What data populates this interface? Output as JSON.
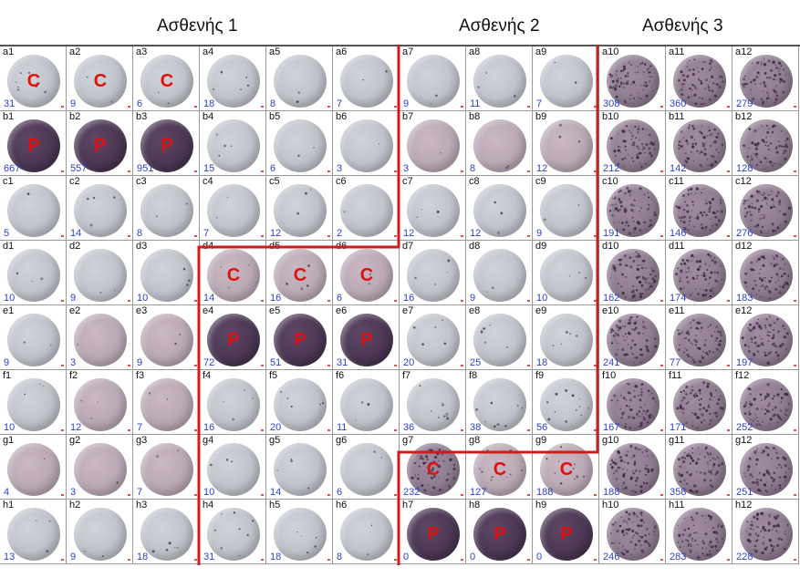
{
  "headers": [
    "Ασθενής 1",
    "Ασθενής 2",
    "Ασθενής 3"
  ],
  "rows": [
    "a",
    "b",
    "c",
    "d",
    "e",
    "f",
    "g",
    "h"
  ],
  "wells": [
    [
      [
        "a1",
        "31",
        "light",
        "C"
      ],
      [
        "a2",
        "9",
        "light",
        "C"
      ],
      [
        "a3",
        "6",
        "light",
        "C"
      ],
      [
        "a4",
        "18",
        "light",
        ""
      ],
      [
        "a5",
        "8",
        "light",
        ""
      ],
      [
        "a6",
        "7",
        "light",
        ""
      ],
      [
        "a7",
        "9",
        "light",
        ""
      ],
      [
        "a8",
        "11",
        "light",
        ""
      ],
      [
        "a9",
        "7",
        "light",
        ""
      ],
      [
        "a10",
        "308",
        "speck",
        ""
      ],
      [
        "a11",
        "360",
        "speck",
        ""
      ],
      [
        "a12",
        "279",
        "speck",
        ""
      ]
    ],
    [
      [
        "b1",
        "667",
        "dark",
        "P"
      ],
      [
        "b2",
        "557",
        "dark",
        "P"
      ],
      [
        "b3",
        "951",
        "dark",
        "P"
      ],
      [
        "b4",
        "15",
        "light",
        ""
      ],
      [
        "b5",
        "6",
        "light",
        ""
      ],
      [
        "b6",
        "3",
        "light",
        ""
      ],
      [
        "b7",
        "3",
        "pink",
        ""
      ],
      [
        "b8",
        "8",
        "pink",
        ""
      ],
      [
        "b9",
        "12",
        "pink",
        ""
      ],
      [
        "b10",
        "212",
        "speck",
        ""
      ],
      [
        "b11",
        "142",
        "speck",
        ""
      ],
      [
        "b12",
        "128",
        "speck",
        ""
      ]
    ],
    [
      [
        "c1",
        "5",
        "light",
        ""
      ],
      [
        "c2",
        "14",
        "light",
        ""
      ],
      [
        "c3",
        "8",
        "light",
        ""
      ],
      [
        "c4",
        "7",
        "light",
        ""
      ],
      [
        "c5",
        "12",
        "light",
        ""
      ],
      [
        "c6",
        "2",
        "light",
        ""
      ],
      [
        "c7",
        "12",
        "light",
        ""
      ],
      [
        "c8",
        "12",
        "light",
        ""
      ],
      [
        "c9",
        "9",
        "light",
        ""
      ],
      [
        "c10",
        "191",
        "speck",
        ""
      ],
      [
        "c11",
        "146",
        "speck",
        ""
      ],
      [
        "c12",
        "276",
        "speck",
        ""
      ]
    ],
    [
      [
        "d1",
        "10",
        "light",
        ""
      ],
      [
        "d2",
        "9",
        "light",
        ""
      ],
      [
        "d3",
        "10",
        "light",
        ""
      ],
      [
        "d4",
        "14",
        "pink",
        "C"
      ],
      [
        "d5",
        "16",
        "pink",
        "C"
      ],
      [
        "d6",
        "6",
        "pink",
        "C"
      ],
      [
        "d7",
        "16",
        "light",
        ""
      ],
      [
        "d8",
        "9",
        "light",
        ""
      ],
      [
        "d9",
        "10",
        "light",
        ""
      ],
      [
        "d10",
        "162",
        "speck",
        ""
      ],
      [
        "d11",
        "174",
        "speck",
        ""
      ],
      [
        "d12",
        "183",
        "speck",
        ""
      ]
    ],
    [
      [
        "e1",
        "9",
        "light",
        ""
      ],
      [
        "e2",
        "3",
        "pink",
        ""
      ],
      [
        "e3",
        "9",
        "pink",
        ""
      ],
      [
        "e4",
        "72",
        "dark",
        "P"
      ],
      [
        "e5",
        "51",
        "dark",
        "P"
      ],
      [
        "e6",
        "31",
        "dark",
        "P"
      ],
      [
        "e7",
        "20",
        "light",
        ""
      ],
      [
        "e8",
        "25",
        "light",
        ""
      ],
      [
        "e9",
        "18",
        "light",
        ""
      ],
      [
        "e10",
        "241",
        "speck",
        ""
      ],
      [
        "e11",
        "77",
        "speck",
        ""
      ],
      [
        "e12",
        "197",
        "speck",
        ""
      ]
    ],
    [
      [
        "f1",
        "10",
        "light",
        ""
      ],
      [
        "f2",
        "12",
        "pink",
        ""
      ],
      [
        "f3",
        "7",
        "pink",
        ""
      ],
      [
        "f4",
        "16",
        "light",
        ""
      ],
      [
        "f5",
        "20",
        "light",
        ""
      ],
      [
        "f6",
        "11",
        "light",
        ""
      ],
      [
        "f7",
        "36",
        "light",
        ""
      ],
      [
        "f8",
        "38",
        "light",
        ""
      ],
      [
        "f9",
        "56",
        "light",
        ""
      ],
      [
        "f10",
        "167",
        "speck",
        ""
      ],
      [
        "f11",
        "171",
        "speck",
        ""
      ],
      [
        "f12",
        "252",
        "speck",
        ""
      ]
    ],
    [
      [
        "g1",
        "4",
        "pink",
        ""
      ],
      [
        "g2",
        "3",
        "pink",
        ""
      ],
      [
        "g3",
        "7",
        "pink",
        ""
      ],
      [
        "g4",
        "10",
        "light",
        ""
      ],
      [
        "g5",
        "14",
        "light",
        ""
      ],
      [
        "g6",
        "6",
        "light",
        ""
      ],
      [
        "g7",
        "232",
        "speck",
        "C"
      ],
      [
        "g8",
        "127",
        "pink",
        "C"
      ],
      [
        "g9",
        "188",
        "pink",
        "C"
      ],
      [
        "g10",
        "188",
        "speck",
        ""
      ],
      [
        "g11",
        "358",
        "speck",
        ""
      ],
      [
        "g12",
        "251",
        "speck",
        ""
      ]
    ],
    [
      [
        "h1",
        "13",
        "light",
        ""
      ],
      [
        "h2",
        "9",
        "light",
        ""
      ],
      [
        "h3",
        "18",
        "light",
        ""
      ],
      [
        "h4",
        "31",
        "light",
        ""
      ],
      [
        "h5",
        "18",
        "light",
        ""
      ],
      [
        "h6",
        "8",
        "light",
        ""
      ],
      [
        "h7",
        "0",
        "dark",
        "P"
      ],
      [
        "h8",
        "0",
        "dark",
        "P"
      ],
      [
        "h9",
        "0",
        "dark",
        "P"
      ],
      [
        "h10",
        "246",
        "speck",
        ""
      ],
      [
        "h11",
        "283",
        "speck",
        ""
      ],
      [
        "h12",
        "228",
        "speck",
        ""
      ]
    ]
  ],
  "colors": {
    "light": "#bdc1c8",
    "pink": "#b8a7b3",
    "dark": "#4a3552",
    "speck": "#8d7a8e",
    "marker": "#e01010",
    "count": "#2a3fcf",
    "group_border": "#d11a1a"
  }
}
